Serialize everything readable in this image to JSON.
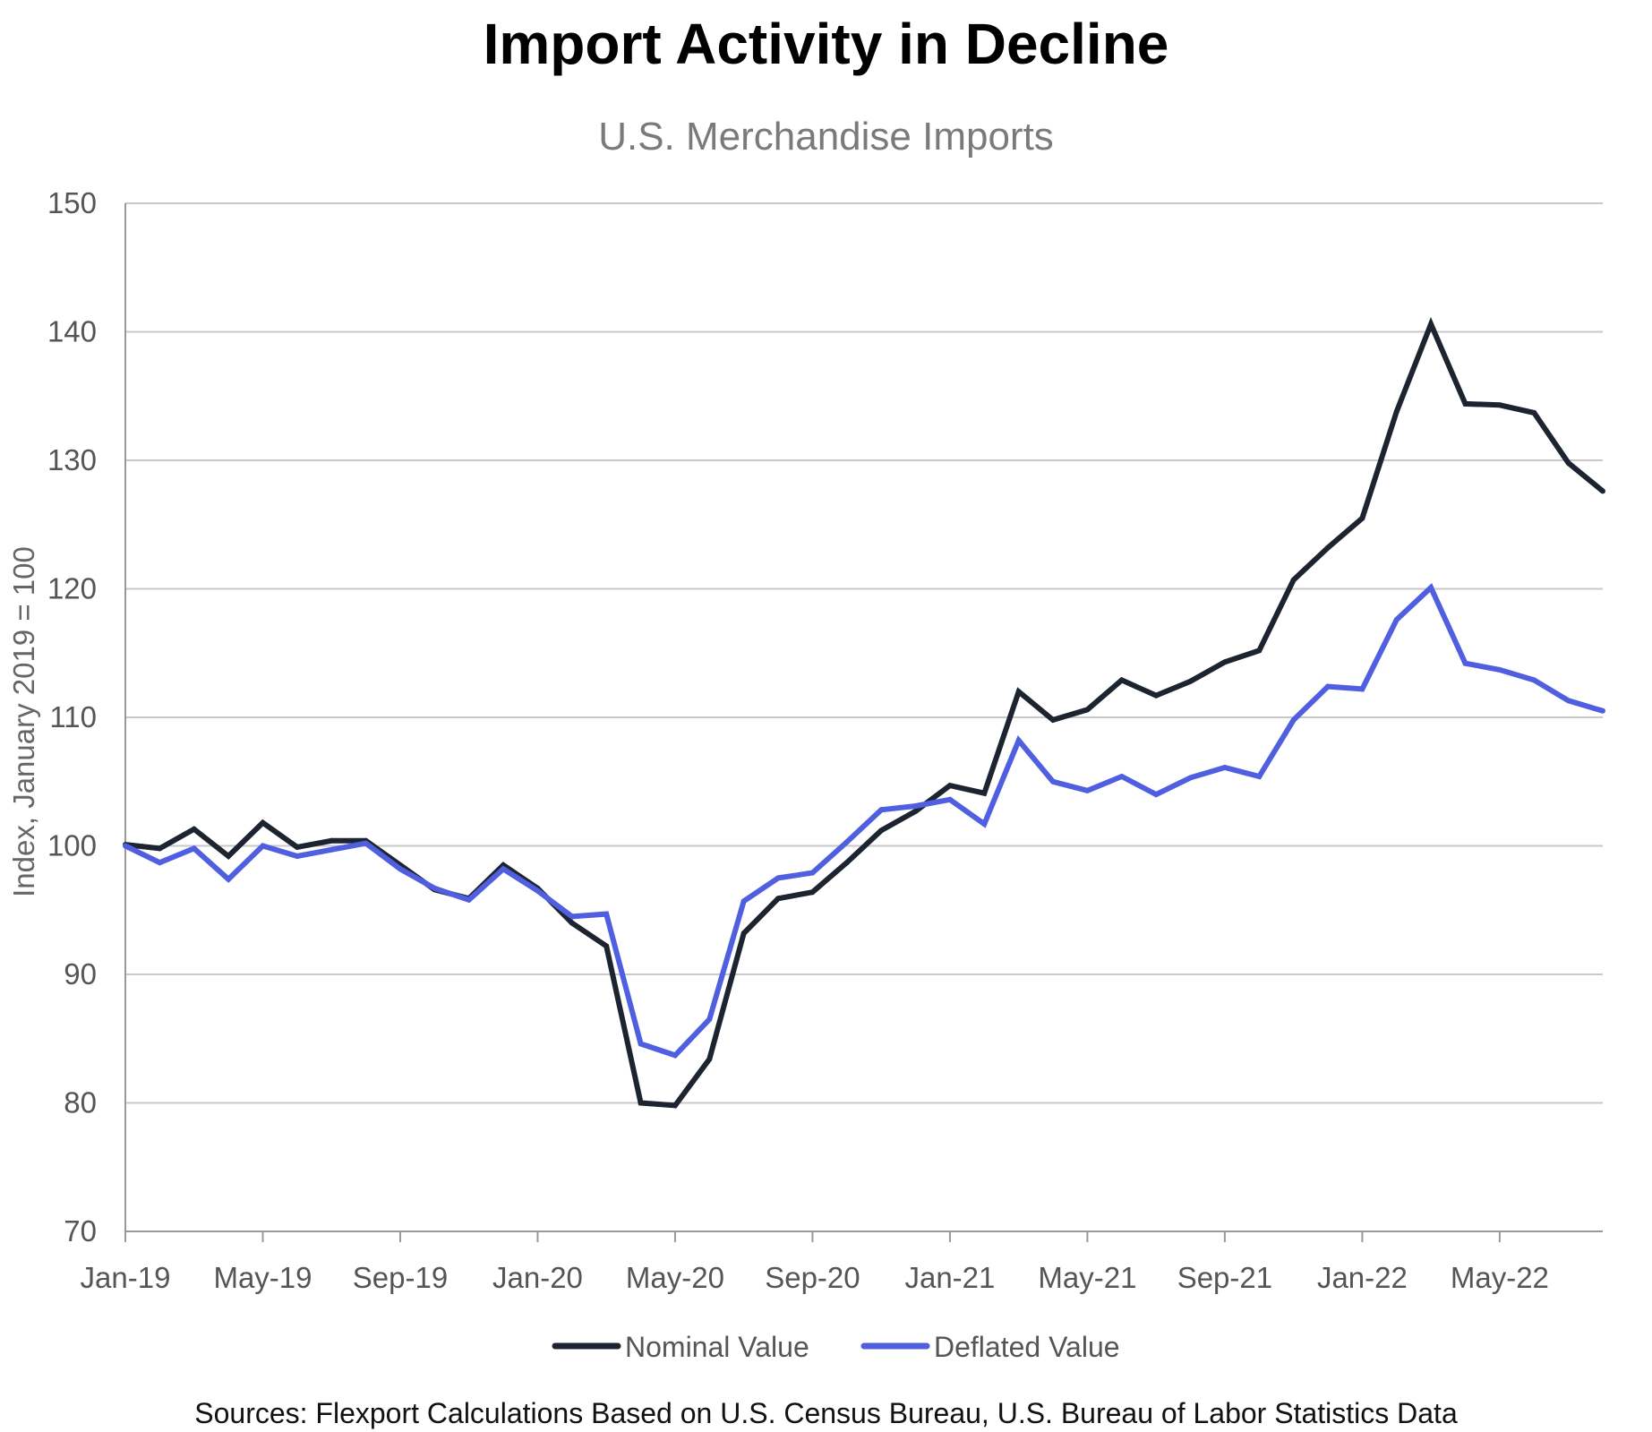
{
  "chart_data": {
    "type": "line",
    "title": "Import Activity in Decline",
    "subtitle": "U.S. Merchandise Imports",
    "ylabel": "Index, January 2019 = 100",
    "xlabel": "",
    "ylim": [
      70,
      150
    ],
    "yticks": [
      "70",
      "80",
      "90",
      "100",
      "110",
      "120",
      "130",
      "140",
      "150"
    ],
    "x_tick_labels": [
      "Jan-19",
      "May-19",
      "Sep-19",
      "Jan-20",
      "May-20",
      "Sep-20",
      "Jan-21",
      "May-21",
      "Sep-21",
      "Jan-22",
      "May-22"
    ],
    "x": [
      "Jan-19",
      "Feb-19",
      "Mar-19",
      "Apr-19",
      "May-19",
      "Jun-19",
      "Jul-19",
      "Aug-19",
      "Sep-19",
      "Oct-19",
      "Nov-19",
      "Dec-19",
      "Jan-20",
      "Feb-20",
      "Mar-20",
      "Apr-20",
      "May-20",
      "Jun-20",
      "Jul-20",
      "Aug-20",
      "Sep-20",
      "Oct-20",
      "Nov-20",
      "Dec-20",
      "Jan-21",
      "Feb-21",
      "Mar-21",
      "Apr-21",
      "May-21",
      "Jun-21",
      "Jul-21",
      "Aug-21",
      "Sep-21",
      "Oct-21",
      "Nov-21",
      "Dec-21",
      "Jan-22",
      "Feb-22",
      "Mar-22",
      "Apr-22",
      "May-22",
      "Jun-22",
      "Jul-22",
      "Aug-22"
    ],
    "grid": true,
    "legend_position": "bottom",
    "series": [
      {
        "name": "Nominal Value",
        "color": "#1c2430",
        "values": [
          100.1,
          99.8,
          101.3,
          99.2,
          101.8,
          99.9,
          100.4,
          100.4,
          98.5,
          96.6,
          95.9,
          98.5,
          96.7,
          94.0,
          92.2,
          80.0,
          79.8,
          83.4,
          93.2,
          95.9,
          96.4,
          98.7,
          101.2,
          102.7,
          104.7,
          104.1,
          112.0,
          109.8,
          110.6,
          112.9,
          111.7,
          112.8,
          114.3,
          115.2,
          120.7,
          123.2,
          125.5,
          133.8,
          140.6,
          134.4,
          134.3,
          133.7,
          129.8,
          127.6
        ]
      },
      {
        "name": "Deflated Value",
        "color": "#4f5fe0",
        "values": [
          100.0,
          98.7,
          99.8,
          97.4,
          100.0,
          99.2,
          99.7,
          100.2,
          98.2,
          96.7,
          95.8,
          98.2,
          96.5,
          94.5,
          94.7,
          84.6,
          83.7,
          86.5,
          95.7,
          97.5,
          97.9,
          100.3,
          102.8,
          103.1,
          103.6,
          101.7,
          108.2,
          105.0,
          104.3,
          105.4,
          104.0,
          105.3,
          106.1,
          105.4,
          109.8,
          112.4,
          112.2,
          117.6,
          120.1,
          114.2,
          113.7,
          112.9,
          111.3,
          110.5
        ]
      }
    ]
  },
  "source_note": "Sources: Flexport Calculations Based on U.S. Census Bureau, U.S. Bureau of Labor Statistics Data"
}
